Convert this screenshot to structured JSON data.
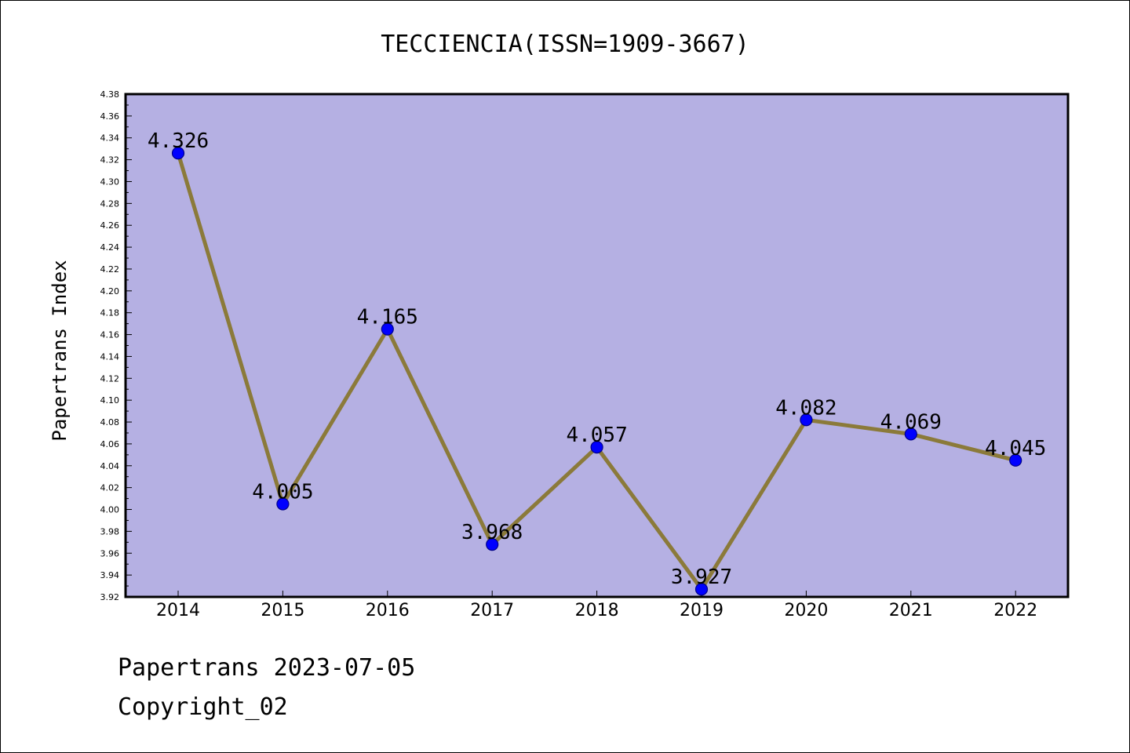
{
  "chart_data": {
    "type": "line",
    "title": "TECCIENCIA(ISSN=1909-3667)",
    "xlabel": "",
    "ylabel": "Papertrans Index",
    "categories": [
      "2014",
      "2015",
      "2016",
      "2017",
      "2018",
      "2019",
      "2020",
      "2021",
      "2022"
    ],
    "series": [
      {
        "values": [
          4.326,
          4.005,
          4.165,
          3.968,
          4.057,
          3.927,
          4.082,
          4.069,
          4.045
        ],
        "labels": [
          "4.326",
          "4.005",
          "4.165",
          "3.968",
          "4.057",
          "3.927",
          "4.082",
          "4.069",
          "4.045"
        ]
      }
    ],
    "ylim": [
      3.92,
      4.38
    ],
    "yticks": [
      "3.92",
      "3.94",
      "3.96",
      "3.98",
      "4.00",
      "4.02",
      "4.04",
      "4.06",
      "4.08",
      "4.10",
      "4.12",
      "4.14",
      "4.16",
      "4.18",
      "4.20",
      "4.22",
      "4.24",
      "4.26",
      "4.28",
      "4.30",
      "4.32",
      "4.34",
      "4.36",
      "4.38"
    ],
    "grid": false,
    "legend": "none",
    "colors": {
      "plot_background": "#b5b0e3",
      "line": "#8b7a3a",
      "marker": "#0000ff",
      "marker_edge": "#00008b"
    }
  },
  "footer": {
    "date_line": "Papertrans 2023-07-05",
    "copyright_line": "Copyright_02"
  }
}
